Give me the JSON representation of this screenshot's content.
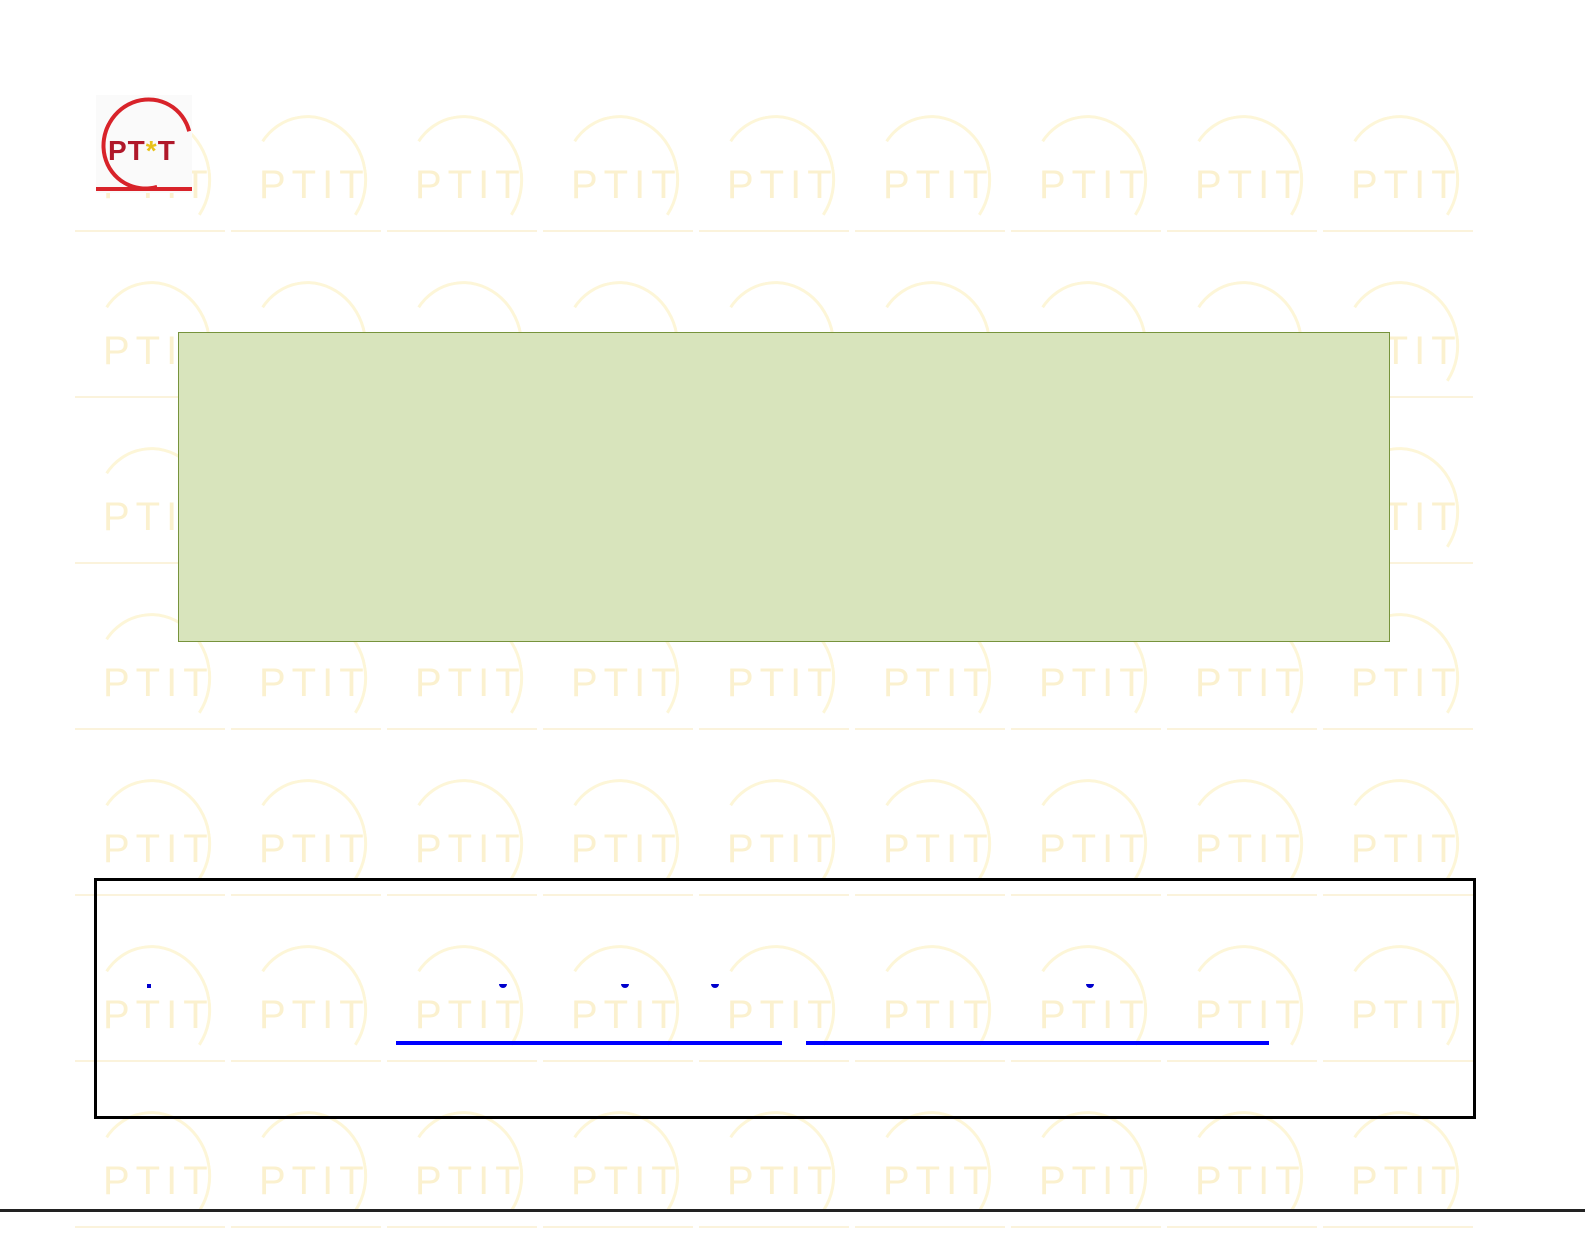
{
  "logo": {
    "text": "PTIT"
  },
  "colors": {
    "content_box_fill": "#d8e4bc",
    "content_box_border": "#77933c",
    "link": "#0000ff",
    "logo_red": "#d8232a"
  },
  "watermark": {
    "text": "PTIT"
  },
  "links": [
    {
      "label": ""
    },
    {
      "label": ""
    }
  ]
}
